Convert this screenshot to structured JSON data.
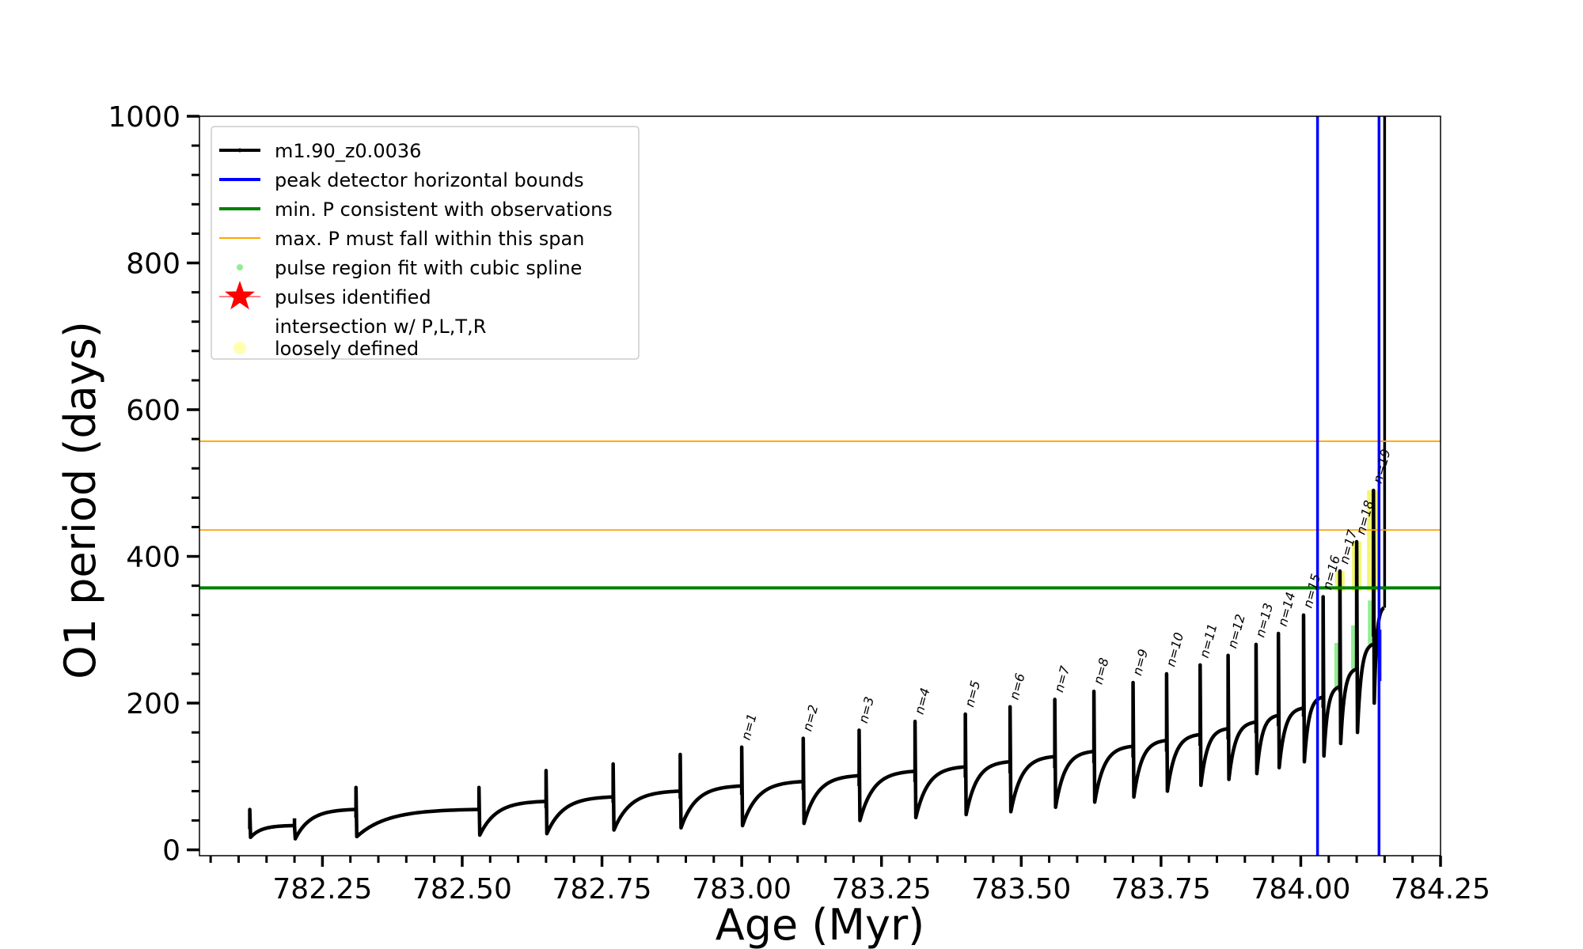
{
  "chart_data": {
    "type": "line",
    "xlabel": "Age (Myr)",
    "ylabel": "O1 period (days)",
    "xlim": [
      782.03,
      784.25
    ],
    "ylim": [
      -8,
      1000
    ],
    "x_ticks": [
      782.25,
      782.5,
      782.75,
      783.0,
      783.25,
      783.5,
      783.75,
      784.0,
      784.25
    ],
    "x_tick_labels": [
      "782.25",
      "782.50",
      "782.75",
      "783.00",
      "783.25",
      "783.50",
      "783.75",
      "784.00",
      "784.25"
    ],
    "y_ticks": [
      0,
      200,
      400,
      600,
      800,
      1000
    ],
    "y_tick_labels": [
      "0",
      "200",
      "400",
      "600",
      "800",
      "1000"
    ],
    "legend": {
      "placement": "upper-left",
      "entries": [
        {
          "label": "m1.90_z0.0036",
          "kind": "line-marker",
          "color": "#000000"
        },
        {
          "label": "peak detector horizontal bounds",
          "kind": "line",
          "color": "#0000ff"
        },
        {
          "label": "min. P consistent with observations",
          "kind": "line",
          "color": "#008000"
        },
        {
          "label": "max. P must fall within this span",
          "kind": "line",
          "color": "#ffa500"
        },
        {
          "label": "pulse region fit with cubic spline",
          "kind": "dot",
          "color": "#90ee90"
        },
        {
          "label": "pulses identified",
          "kind": "star",
          "color": "#ff0000"
        },
        {
          "label": "intersection w/ P,L,T,R",
          "label2": "loosely defined",
          "kind": "dot",
          "color": "#ffffb0"
        }
      ]
    },
    "reference_lines": {
      "vertical_blue_x": [
        784.03,
        784.14
      ],
      "horizontal_green_y": 357,
      "horizontal_orange_y": [
        436,
        557
      ]
    },
    "pulse_cycles": [
      {
        "x": 782.12,
        "base": 17,
        "peak": 55,
        "pre": 40
      },
      {
        "x": 782.2,
        "base": 15,
        "peak": 33,
        "pre": 33
      },
      {
        "x": 782.31,
        "base": 18,
        "peak": 85,
        "pre": 55
      },
      {
        "x": 782.53,
        "base": 20,
        "peak": 85,
        "pre": 55
      },
      {
        "x": 782.65,
        "base": 22,
        "peak": 108,
        "pre": 66
      },
      {
        "x": 782.77,
        "base": 27,
        "peak": 117,
        "pre": 72
      },
      {
        "x": 782.89,
        "base": 30,
        "peak": 130,
        "pre": 80
      },
      {
        "x": 783.0,
        "base": 33,
        "peak": 140,
        "pre": 87,
        "label": "n=1"
      },
      {
        "x": 783.11,
        "base": 36,
        "peak": 152,
        "pre": 93,
        "label": "n=2"
      },
      {
        "x": 783.21,
        "base": 40,
        "peak": 163,
        "pre": 101,
        "label": "n=3"
      },
      {
        "x": 783.31,
        "base": 44,
        "peak": 175,
        "pre": 107,
        "label": "n=4"
      },
      {
        "x": 783.4,
        "base": 48,
        "peak": 185,
        "pre": 113,
        "label": "n=5"
      },
      {
        "x": 783.48,
        "base": 52,
        "peak": 195,
        "pre": 120,
        "label": "n=6"
      },
      {
        "x": 783.56,
        "base": 58,
        "peak": 205,
        "pre": 127,
        "label": "n=7"
      },
      {
        "x": 783.63,
        "base": 65,
        "peak": 216,
        "pre": 134,
        "label": "n=8"
      },
      {
        "x": 783.7,
        "base": 72,
        "peak": 228,
        "pre": 141,
        "label": "n=9"
      },
      {
        "x": 783.76,
        "base": 80,
        "peak": 240,
        "pre": 149,
        "label": "n=10"
      },
      {
        "x": 783.82,
        "base": 88,
        "peak": 252,
        "pre": 157,
        "label": "n=11"
      },
      {
        "x": 783.87,
        "base": 96,
        "peak": 265,
        "pre": 165,
        "label": "n=12"
      },
      {
        "x": 783.92,
        "base": 104,
        "peak": 280,
        "pre": 174,
        "label": "n=13"
      },
      {
        "x": 783.96,
        "base": 112,
        "peak": 295,
        "pre": 183,
        "label": "n=14"
      },
      {
        "x": 784.005,
        "base": 120,
        "peak": 320,
        "pre": 193,
        "label": "n=15"
      },
      {
        "x": 784.04,
        "base": 128,
        "peak": 345,
        "pre": 208,
        "label": "n=16"
      },
      {
        "x": 784.07,
        "base": 145,
        "peak": 380,
        "pre": 222,
        "label": "n=17"
      },
      {
        "x": 784.1,
        "base": 160,
        "peak": 420,
        "pre": 246,
        "label": "n=18"
      },
      {
        "x": 784.13,
        "base": 200,
        "peak": 490,
        "pre": 280,
        "label": "n=19"
      },
      {
        "x": 784.15,
        "base": 0,
        "peak": 1000,
        "pre": 330
      }
    ]
  }
}
